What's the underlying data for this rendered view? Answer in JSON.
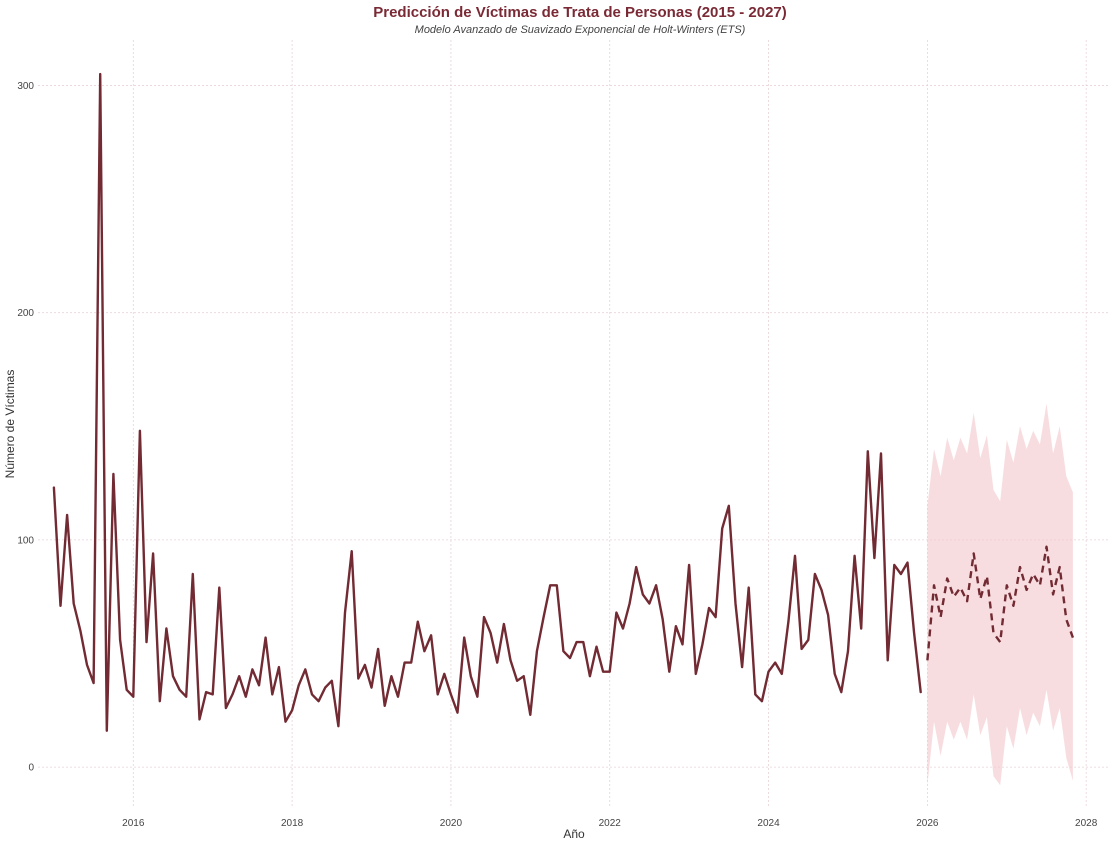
{
  "title": "Predicción de Víctimas de Trata de Personas (2015 - 2027)",
  "subtitle": "Modelo Avanzado de Suavizado Exponencial de Holt-Winters (ETS)",
  "chart_data": {
    "type": "line",
    "title": "Predicción de Víctimas de Trata de Personas (2015 - 2027)",
    "subtitle": "Modelo Avanzado de Suavizado Exponencial de Holt-Winters (ETS)",
    "xlabel": "Año",
    "ylabel": "Número de Víctimas",
    "xlim": [
      2014.8,
      2028.3
    ],
    "ylim": [
      -18,
      320
    ],
    "xticks": [
      2016,
      2018,
      2020,
      2022,
      2024,
      2026,
      2028
    ],
    "yticks": [
      0,
      100,
      200,
      300
    ],
    "grid": true,
    "colors": {
      "line": "#722a33",
      "band": "#f3c6cb",
      "grid": "#e7d3d7"
    },
    "series": [
      {
        "style": "solid",
        "start": "2015-01",
        "frequency": "monthly",
        "values": [
          123,
          71,
          111,
          72,
          60,
          45,
          37,
          305,
          16,
          129,
          56,
          34,
          31,
          148,
          55,
          94,
          29,
          61,
          40,
          34,
          31,
          85,
          21,
          33,
          32,
          79,
          26,
          32,
          40,
          31,
          43,
          36,
          57,
          32,
          44,
          20,
          25,
          36,
          43,
          32,
          29,
          35,
          38,
          18,
          68,
          95,
          39,
          45,
          35,
          52,
          27,
          40,
          31,
          46,
          46,
          64,
          51,
          58,
          32,
          41,
          32,
          24,
          57,
          40,
          31,
          66,
          59,
          46,
          63,
          47,
          38,
          40,
          23,
          51,
          66,
          80,
          80,
          51,
          48,
          55,
          55,
          40,
          53,
          42,
          42,
          68,
          61,
          72,
          88,
          76,
          72,
          80,
          65,
          42,
          62,
          54,
          89,
          41,
          54,
          70,
          66,
          105,
          115,
          72,
          44,
          79,
          32,
          29,
          42,
          46,
          41,
          64,
          93,
          52,
          56,
          85,
          78,
          67,
          41,
          33,
          51,
          93,
          61,
          139,
          92,
          138,
          47,
          89,
          85,
          90,
          59,
          33
        ]
      },
      {
        "style": "dashed",
        "start": "2026-01",
        "frequency": "monthly",
        "values": [
          47,
          80,
          66,
          83,
          75,
          79,
          73,
          94,
          74,
          84,
          59,
          55,
          80,
          71,
          88,
          78,
          85,
          80,
          97,
          76,
          88,
          65,
          57
        ],
        "lower": [
          -8,
          20,
          5,
          20,
          12,
          20,
          12,
          32,
          14,
          22,
          -4,
          -8,
          18,
          8,
          26,
          14,
          24,
          18,
          34,
          16,
          26,
          4,
          -6
        ],
        "upper": [
          115,
          140,
          128,
          145,
          135,
          145,
          138,
          156,
          136,
          146,
          122,
          117,
          144,
          134,
          150,
          140,
          148,
          142,
          160,
          138,
          150,
          128,
          121
        ]
      }
    ]
  }
}
